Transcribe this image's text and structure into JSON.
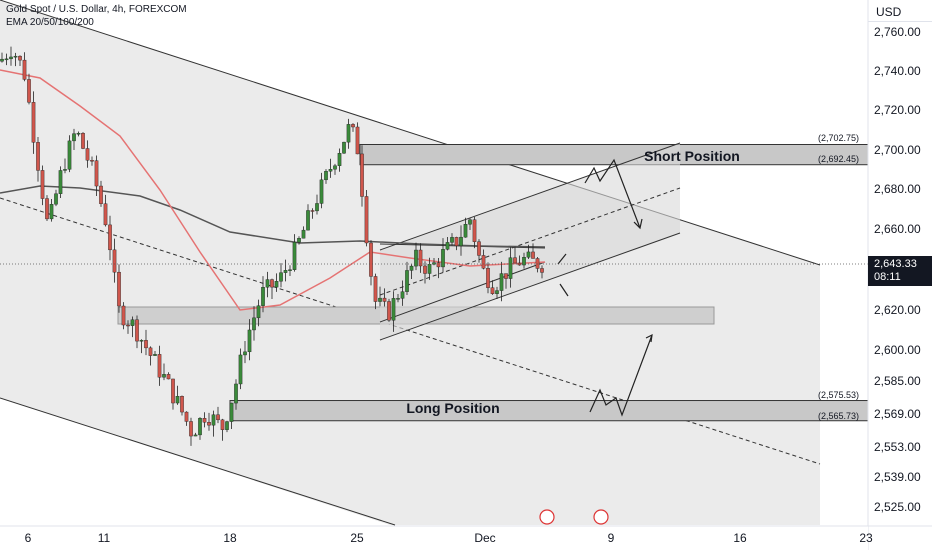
{
  "header": {
    "symbol": "Gold Spot / U.S. Dollar, 4h, FOREXCOM",
    "indicator": "EMA 20/50/100/200"
  },
  "price_axis": {
    "currency": "USD",
    "current_price": "2,643.33",
    "countdown": "08:11"
  },
  "annotations": {
    "short_label": "Short Position",
    "long_label": "Long Position",
    "short_top": "(2,702.75)",
    "short_bottom": "(2,692.45)",
    "long_top": "(2,575.53)",
    "long_bottom": "(2,565.73)"
  },
  "chart_data": {
    "type": "candlestick",
    "title": "Gold Spot / U.S. Dollar, 4h, FOREXCOM",
    "y_ticks": [
      "2,760.00",
      "2,740.00",
      "2,720.00",
      "2,700.00",
      "2,680.00",
      "2,660.00",
      "2,620.00",
      "2,600.00",
      "2,585.00",
      "2,569.00",
      "2,553.00",
      "2,539.00",
      "2,525.00"
    ],
    "x_ticks": [
      "6",
      "11",
      "18",
      "25",
      "Dec",
      "9",
      "16",
      "23"
    ],
    "current_price": 2643.33,
    "zones": [
      {
        "name": "Short Position",
        "top": 2702.75,
        "bottom": 2692.45
      },
      {
        "name": "Long Position",
        "top": 2575.53,
        "bottom": 2565.73
      }
    ],
    "ema_series": [
      {
        "name": "EMA 50",
        "color": "#e57373"
      },
      {
        "name": "EMA 200",
        "color": "#555555"
      }
    ],
    "approx_trend": [
      {
        "x": "Nov 6",
        "close": 2745
      },
      {
        "x": "Nov 7",
        "close": 2700
      },
      {
        "x": "Nov 8",
        "close": 2685
      },
      {
        "x": "Nov 11",
        "close": 2660
      },
      {
        "x": "Nov 12",
        "close": 2615
      },
      {
        "x": "Nov 14",
        "close": 2570
      },
      {
        "x": "Nov 15",
        "close": 2562
      },
      {
        "x": "Nov 18",
        "close": 2610
      },
      {
        "x": "Nov 20",
        "close": 2650
      },
      {
        "x": "Nov 22",
        "close": 2700
      },
      {
        "x": "Nov 25",
        "close": 2625
      },
      {
        "x": "Nov 27",
        "close": 2640
      },
      {
        "x": "Nov 29",
        "close": 2650
      },
      {
        "x": "Dec 2",
        "close": 2638
      },
      {
        "x": "Dec 4",
        "close": 2643
      }
    ]
  }
}
